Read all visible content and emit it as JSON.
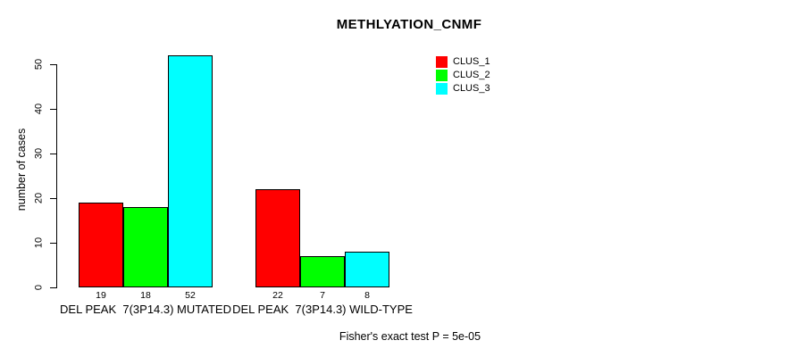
{
  "chart_data": {
    "type": "bar",
    "title": "METHLYATION_CNMF",
    "ylabel": "number of cases",
    "xlabel": "",
    "ylim": [
      0,
      52
    ],
    "yticks": [
      0,
      10,
      20,
      30,
      40,
      50
    ],
    "grid": false,
    "legend_position": "top-right",
    "categories": [
      "DEL PEAK  7(3P14.3) MUTATED",
      "DEL PEAK  7(3P14.3) WILD-TYPE"
    ],
    "series": [
      {
        "name": "CLUS_1",
        "color": "#FF0000",
        "values": [
          19,
          22
        ]
      },
      {
        "name": "CLUS_2",
        "color": "#00FF00",
        "values": [
          18,
          7
        ]
      },
      {
        "name": "CLUS_3",
        "color": "#00FFFF",
        "values": [
          52,
          8
        ]
      }
    ],
    "bar_value_labels": [
      [
        19,
        18,
        52
      ],
      [
        22,
        7,
        8
      ]
    ],
    "footer": "Fisher's exact test P = 5e-05",
    "background_color": "#FFFFFF",
    "bar_border_color": "#000000"
  }
}
